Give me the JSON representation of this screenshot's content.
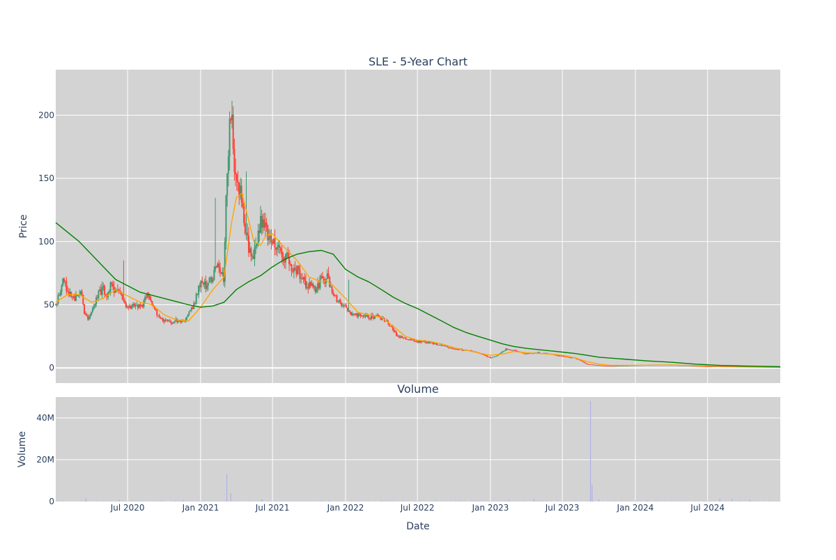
{
  "chart_data": [
    {
      "type": "candlestick",
      "title": "SLE - 5-Year Chart",
      "ylabel": "Price",
      "xlabel": "",
      "x_range": [
        "2020-01-02",
        "2024-12-31"
      ],
      "ylim": [
        -12,
        236
      ],
      "y_ticks": [
        0,
        50,
        100,
        150,
        200
      ],
      "x_gridlines": [
        "2020-07-01",
        "2021-01-01",
        "2021-07-01",
        "2022-01-01",
        "2022-07-01",
        "2023-01-01",
        "2023-07-01",
        "2024-01-01",
        "2024-07-01"
      ],
      "grid": true,
      "legend": "none",
      "colors": {
        "plot_bg": "#d3d3d3",
        "grid": "#ffffff",
        "up": "#3d9970",
        "down": "#ff4136",
        "ma_short": "#ffa500",
        "ma_long": "#008000",
        "text": "#2a3f5f"
      },
      "price_path": [
        [
          "2020-01-02",
          50
        ],
        [
          "2020-01-10",
          58
        ],
        [
          "2020-01-20",
          70
        ],
        [
          "2020-02-05",
          60
        ],
        [
          "2020-02-20",
          55
        ],
        [
          "2020-03-05",
          62
        ],
        [
          "2020-03-15",
          42
        ],
        [
          "2020-03-25",
          38
        ],
        [
          "2020-04-05",
          48
        ],
        [
          "2020-04-20",
          60
        ],
        [
          "2020-05-01",
          62
        ],
        [
          "2020-05-10",
          55
        ],
        [
          "2020-05-20",
          65
        ],
        [
          "2020-06-01",
          62
        ],
        [
          "2020-06-10",
          60
        ],
        [
          "2020-06-20",
          52
        ],
        [
          "2020-07-01",
          48
        ],
        [
          "2020-07-20",
          50
        ],
        [
          "2020-08-05",
          48
        ],
        [
          "2020-08-20",
          58
        ],
        [
          "2020-09-01",
          52
        ],
        [
          "2020-09-15",
          40
        ],
        [
          "2020-10-01",
          38
        ],
        [
          "2020-10-15",
          36
        ],
        [
          "2020-11-01",
          38
        ],
        [
          "2020-11-15",
          36
        ],
        [
          "2020-12-01",
          42
        ],
        [
          "2020-12-15",
          50
        ],
        [
          "2021-01-01",
          68
        ],
        [
          "2021-01-15",
          65
        ],
        [
          "2021-02-01",
          70
        ],
        [
          "2021-02-10",
          80
        ],
        [
          "2021-02-20",
          75
        ],
        [
          "2021-03-01",
          70
        ],
        [
          "2021-03-05",
          130
        ],
        [
          "2021-03-10",
          165
        ],
        [
          "2021-03-15",
          195
        ],
        [
          "2021-03-20",
          205
        ],
        [
          "2021-03-25",
          170
        ],
        [
          "2021-04-01",
          150
        ],
        [
          "2021-04-10",
          138
        ],
        [
          "2021-04-20",
          115
        ],
        [
          "2021-05-01",
          95
        ],
        [
          "2021-05-10",
          85
        ],
        [
          "2021-05-20",
          95
        ],
        [
          "2021-06-01",
          115
        ],
        [
          "2021-06-10",
          118
        ],
        [
          "2021-06-20",
          105
        ],
        [
          "2021-07-01",
          98
        ],
        [
          "2021-07-15",
          92
        ],
        [
          "2021-08-01",
          88
        ],
        [
          "2021-08-15",
          82
        ],
        [
          "2021-09-01",
          78
        ],
        [
          "2021-09-15",
          68
        ],
        [
          "2021-10-01",
          65
        ],
        [
          "2021-10-15",
          62
        ],
        [
          "2021-11-01",
          70
        ],
        [
          "2021-11-15",
          72
        ],
        [
          "2021-12-01",
          58
        ],
        [
          "2021-12-15",
          52
        ],
        [
          "2022-01-01",
          48
        ],
        [
          "2022-01-20",
          42
        ],
        [
          "2022-02-10",
          42
        ],
        [
          "2022-03-01",
          40
        ],
        [
          "2022-03-20",
          41
        ],
        [
          "2022-04-10",
          38
        ],
        [
          "2022-04-25",
          33
        ],
        [
          "2022-05-10",
          26
        ],
        [
          "2022-06-01",
          23
        ],
        [
          "2022-07-01",
          21
        ],
        [
          "2022-08-01",
          20
        ],
        [
          "2022-09-01",
          18
        ],
        [
          "2022-10-01",
          15
        ],
        [
          "2022-11-01",
          14
        ],
        [
          "2022-12-01",
          12
        ],
        [
          "2023-01-01",
          8
        ],
        [
          "2023-01-20",
          10
        ],
        [
          "2023-02-10",
          15
        ],
        [
          "2023-03-01",
          14
        ],
        [
          "2023-04-01",
          11
        ],
        [
          "2023-05-01",
          12
        ],
        [
          "2023-06-01",
          11
        ],
        [
          "2023-07-01",
          9
        ],
        [
          "2023-08-01",
          8
        ],
        [
          "2023-08-20",
          5
        ],
        [
          "2023-09-01",
          3
        ],
        [
          "2023-10-01",
          2
        ],
        [
          "2023-11-01",
          1.5
        ],
        [
          "2024-01-01",
          2
        ],
        [
          "2024-03-01",
          2.5
        ],
        [
          "2024-05-01",
          2
        ],
        [
          "2024-07-01",
          1.2
        ],
        [
          "2024-09-01",
          1
        ],
        [
          "2024-11-01",
          0.8
        ],
        [
          "2024-12-31",
          0.5
        ]
      ],
      "ma_short": [
        [
          "2020-01-02",
          52
        ],
        [
          "2020-02-01",
          58
        ],
        [
          "2020-03-01",
          58
        ],
        [
          "2020-04-01",
          52
        ],
        [
          "2020-05-01",
          55
        ],
        [
          "2020-06-01",
          62
        ],
        [
          "2020-07-01",
          57
        ],
        [
          "2020-08-01",
          52
        ],
        [
          "2020-09-01",
          50
        ],
        [
          "2020-10-01",
          42
        ],
        [
          "2020-11-01",
          38
        ],
        [
          "2020-12-01",
          37
        ],
        [
          "2021-01-01",
          48
        ],
        [
          "2021-02-01",
          62
        ],
        [
          "2021-03-01",
          72
        ],
        [
          "2021-03-20",
          115
        ],
        [
          "2021-04-01",
          135
        ],
        [
          "2021-04-15",
          138
        ],
        [
          "2021-05-01",
          118
        ],
        [
          "2021-05-15",
          100
        ],
        [
          "2021-06-01",
          97
        ],
        [
          "2021-06-15",
          105
        ],
        [
          "2021-07-01",
          106
        ],
        [
          "2021-08-01",
          95
        ],
        [
          "2021-09-01",
          85
        ],
        [
          "2021-10-01",
          72
        ],
        [
          "2021-11-01",
          68
        ],
        [
          "2021-11-15",
          69
        ],
        [
          "2021-12-01",
          65
        ],
        [
          "2022-01-01",
          55
        ],
        [
          "2022-02-01",
          44
        ],
        [
          "2022-03-01",
          42
        ],
        [
          "2022-04-01",
          40
        ],
        [
          "2022-05-01",
          33
        ],
        [
          "2022-06-01",
          25
        ],
        [
          "2022-07-01",
          22
        ],
        [
          "2022-08-01",
          21
        ],
        [
          "2022-09-01",
          19
        ],
        [
          "2022-10-01",
          16
        ],
        [
          "2022-11-01",
          14
        ],
        [
          "2022-12-01",
          12
        ],
        [
          "2023-01-01",
          10
        ],
        [
          "2023-02-01",
          11
        ],
        [
          "2023-03-01",
          13
        ],
        [
          "2023-04-01",
          12
        ],
        [
          "2023-05-01",
          11.5
        ],
        [
          "2023-06-01",
          11
        ],
        [
          "2023-07-01",
          10
        ],
        [
          "2023-08-01",
          8
        ],
        [
          "2023-09-01",
          5
        ],
        [
          "2023-10-01",
          3
        ],
        [
          "2023-11-01",
          2
        ],
        [
          "2024-01-01",
          2
        ],
        [
          "2024-04-01",
          2.3
        ],
        [
          "2024-07-01",
          1.6
        ],
        [
          "2024-12-31",
          0.8
        ]
      ],
      "ma_long": [
        [
          "2020-01-02",
          115
        ],
        [
          "2020-03-01",
          100
        ],
        [
          "2020-05-01",
          80
        ],
        [
          "2020-06-01",
          70
        ],
        [
          "2020-08-01",
          60
        ],
        [
          "2020-10-01",
          55
        ],
        [
          "2020-12-01",
          50
        ],
        [
          "2021-01-01",
          48
        ],
        [
          "2021-02-01",
          49
        ],
        [
          "2021-03-01",
          52
        ],
        [
          "2021-04-01",
          62
        ],
        [
          "2021-05-01",
          68
        ],
        [
          "2021-06-01",
          73
        ],
        [
          "2021-07-01",
          80
        ],
        [
          "2021-08-01",
          86
        ],
        [
          "2021-09-01",
          90
        ],
        [
          "2021-10-01",
          92
        ],
        [
          "2021-11-01",
          93
        ],
        [
          "2021-12-01",
          90
        ],
        [
          "2022-01-01",
          78
        ],
        [
          "2022-02-01",
          72
        ],
        [
          "2022-03-01",
          68
        ],
        [
          "2022-04-01",
          62
        ],
        [
          "2022-05-01",
          56
        ],
        [
          "2022-06-01",
          51
        ],
        [
          "2022-07-01",
          47
        ],
        [
          "2022-08-01",
          42
        ],
        [
          "2022-09-01",
          37
        ],
        [
          "2022-10-01",
          32
        ],
        [
          "2022-11-01",
          28
        ],
        [
          "2022-12-01",
          25
        ],
        [
          "2023-01-01",
          22
        ],
        [
          "2023-02-01",
          19
        ],
        [
          "2023-03-01",
          17
        ],
        [
          "2023-04-01",
          15.5
        ],
        [
          "2023-05-01",
          14.5
        ],
        [
          "2023-06-01",
          13.5
        ],
        [
          "2023-07-01",
          12.5
        ],
        [
          "2023-08-01",
          11.5
        ],
        [
          "2023-09-01",
          10
        ],
        [
          "2023-10-01",
          8.5
        ],
        [
          "2023-12-01",
          7
        ],
        [
          "2024-02-01",
          5.5
        ],
        [
          "2024-04-01",
          4.5
        ],
        [
          "2024-06-01",
          3
        ],
        [
          "2024-08-01",
          2
        ],
        [
          "2024-10-01",
          1.5
        ],
        [
          "2024-12-31",
          1
        ]
      ]
    },
    {
      "type": "bar",
      "title": "Volume",
      "ylabel": "Volume",
      "xlabel": "Date",
      "x_range": [
        "2020-01-02",
        "2024-12-31"
      ],
      "ylim": [
        0,
        50000000
      ],
      "y_ticks": [
        0,
        20000000,
        40000000
      ],
      "y_tick_labels": [
        "0",
        "20M",
        "40M"
      ],
      "x_ticks": [
        "2020-07-01",
        "2021-01-01",
        "2021-07-01",
        "2022-01-01",
        "2022-07-01",
        "2023-01-01",
        "2023-07-01",
        "2024-01-01",
        "2024-07-01"
      ],
      "x_tick_labels": [
        "Jul 2020",
        "Jan 2021",
        "Jul 2021",
        "Jan 2022",
        "Jul 2022",
        "Jan 2023",
        "Jul 2023",
        "Jan 2024",
        "Jul 2024"
      ],
      "grid": true,
      "colors": {
        "bar": "#b0b0e8",
        "plot_bg": "#d3d3d3"
      },
      "spikes": [
        [
          "2020-03-18",
          1500000
        ],
        [
          "2020-06-10",
          800000
        ],
        [
          "2020-11-20",
          600000
        ],
        [
          "2021-03-08",
          13000000
        ],
        [
          "2021-03-18",
          4000000
        ],
        [
          "2021-06-05",
          1000000
        ],
        [
          "2022-04-01",
          500000
        ],
        [
          "2023-02-15",
          700000
        ],
        [
          "2023-04-20",
          1200000
        ],
        [
          "2023-09-10",
          48000000
        ],
        [
          "2023-09-14",
          8000000
        ],
        [
          "2023-10-01",
          1000000
        ],
        [
          "2024-02-01",
          600000
        ],
        [
          "2024-08-01",
          1500000
        ],
        [
          "2024-09-01",
          1200000
        ],
        [
          "2024-10-15",
          900000
        ]
      ],
      "baseline_volume": 300000
    }
  ]
}
